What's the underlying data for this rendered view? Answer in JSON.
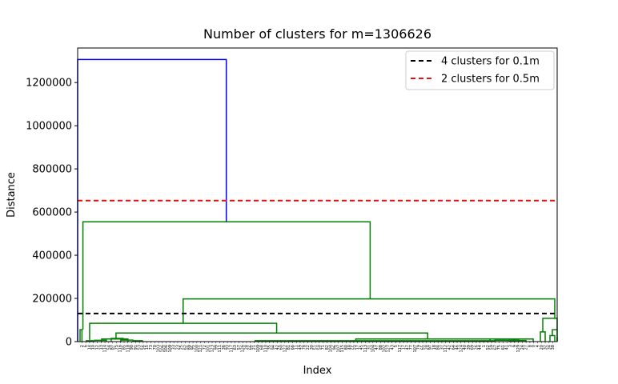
{
  "chart_data": {
    "type": "dendrogram",
    "title": "Number of clusters for m=1306626",
    "xlabel": "Index",
    "ylabel": "Distance",
    "ylim": [
      0,
      1360000
    ],
    "y_ticks": [
      0,
      200000,
      400000,
      600000,
      800000,
      1000000,
      1200000
    ],
    "y_tick_labels": [
      "0",
      "200000",
      "400000",
      "600000",
      "800000",
      "1000000",
      "1200000"
    ],
    "leaf_labels": [
      "2",
      "6",
      "14",
      "10",
      "12",
      "13",
      "114",
      "54",
      "87",
      "75",
      "116",
      "85",
      "118",
      "90",
      "91",
      "53",
      "56",
      "15",
      "73",
      "70",
      "103",
      "106",
      "106",
      "109",
      "33",
      "23",
      "25",
      "62",
      "89",
      "95",
      "100",
      "121",
      "72",
      "101",
      "123",
      "99",
      "111",
      "36",
      "93",
      "117",
      "63",
      "57",
      "126",
      "28",
      "66",
      "21",
      "109",
      "68",
      "110",
      "35",
      "94",
      "42",
      "60",
      "122",
      "81",
      "66",
      "11",
      "49",
      "78",
      "22",
      "30",
      "51",
      "50",
      "71",
      "82",
      "104",
      "96",
      "107",
      "115",
      "80",
      "48",
      "55",
      "17",
      "45",
      "113",
      "31",
      "104",
      "47",
      "88",
      "102",
      "127",
      "43",
      "5",
      "117",
      "17",
      "47",
      "77",
      "107",
      "79",
      "65",
      "28",
      "97",
      "18",
      "84",
      "37",
      "112",
      "42",
      "64",
      "46",
      "124",
      "40",
      "39",
      "69",
      "26",
      "44",
      "1",
      "52",
      "59",
      "67",
      "75",
      "61",
      "41",
      "3",
      "9",
      "129",
      "24",
      "27",
      "8",
      "0",
      "4",
      "20",
      "32",
      "34",
      "38"
    ],
    "reference_lines": [
      {
        "name": "4 clusters for 0.1m",
        "y": 130000,
        "color": "#000000"
      },
      {
        "name": "2 clusters for 0.5m",
        "y": 653000,
        "color": "#e6110d"
      }
    ],
    "links": [
      {
        "color": "#0000ff",
        "x": [
          0.0,
          0.0,
          0.31,
          0.31
        ],
        "y": [
          0,
          1306626,
          1306626,
          555000
        ]
      },
      {
        "color": "#008000",
        "x": [
          0.011,
          0.011,
          0.61,
          0.61
        ],
        "y": [
          55000,
          555000,
          555000,
          198000
        ]
      },
      {
        "color": "#008000",
        "x": [
          0.22,
          0.22,
          0.995,
          0.995
        ],
        "y": [
          85000,
          198000,
          198000,
          108000
        ]
      },
      {
        "color": "#008000",
        "x": [
          0.025,
          0.025,
          0.415,
          0.415
        ],
        "y": [
          8000,
          85000,
          85000,
          40000
        ]
      },
      {
        "color": "#008000",
        "x": [
          0.08,
          0.08,
          0.73,
          0.73
        ],
        "y": [
          15000,
          40000,
          40000,
          12000
        ]
      },
      {
        "color": "#008000",
        "x": [
          0.07,
          0.07,
          0.095,
          0.095
        ],
        "y": [
          0,
          15000,
          15000,
          5000
        ]
      },
      {
        "color": "#008000",
        "x": [
          0.05,
          0.05,
          0.105,
          0.105
        ],
        "y": [
          0,
          12000,
          12000,
          0
        ]
      },
      {
        "color": "#008000",
        "x": [
          0.035,
          0.035,
          0.06,
          0.06
        ],
        "y": [
          0,
          6000,
          6000,
          0
        ]
      },
      {
        "color": "#008000",
        "x": [
          0.09,
          0.09,
          0.115,
          0.115
        ],
        "y": [
          0,
          7000,
          7000,
          0
        ]
      },
      {
        "color": "#008000",
        "x": [
          0.115,
          0.115,
          0.135,
          0.135
        ],
        "y": [
          0,
          4000,
          4000,
          0
        ]
      },
      {
        "color": "#008000",
        "x": [
          0.018,
          0.018,
          0.032,
          0.032
        ],
        "y": [
          0,
          4000,
          4000,
          0
        ]
      },
      {
        "color": "#008000",
        "x": [
          0.005,
          0.005,
          0.009,
          0.009
        ],
        "y": [
          0,
          55000,
          55000,
          0
        ]
      },
      {
        "color": "#008000",
        "x": [
          0.37,
          0.37,
          0.87,
          0.87
        ],
        "y": [
          0,
          4000,
          4000,
          0
        ]
      },
      {
        "color": "#008000",
        "x": [
          0.58,
          0.58,
          0.91,
          0.91
        ],
        "y": [
          0,
          12000,
          12000,
          0
        ]
      },
      {
        "color": "#008000",
        "x": [
          0.86,
          0.86,
          0.95,
          0.95
        ],
        "y": [
          0,
          12000,
          12000,
          0
        ]
      },
      {
        "color": "#008000",
        "x": [
          0.87,
          0.87,
          0.92,
          0.92
        ],
        "y": [
          0,
          6000,
          6000,
          0
        ]
      },
      {
        "color": "#008000",
        "x": [
          0.9,
          0.9,
          0.935,
          0.935
        ],
        "y": [
          0,
          5000,
          5000,
          0
        ]
      },
      {
        "color": "#008000",
        "x": [
          0.97,
          0.97,
          1.0,
          1.0
        ],
        "y": [
          45000,
          108000,
          108000,
          55000
        ]
      },
      {
        "color": "#008000",
        "x": [
          0.965,
          0.965,
          0.975,
          0.975
        ],
        "y": [
          0,
          45000,
          45000,
          0
        ]
      },
      {
        "color": "#008000",
        "x": [
          0.99,
          0.99,
          1.01,
          1.01
        ],
        "y": [
          28000,
          55000,
          55000,
          32000
        ]
      },
      {
        "color": "#008000",
        "x": [
          0.985,
          0.985,
          0.995,
          0.995
        ],
        "y": [
          0,
          28000,
          28000,
          0
        ]
      },
      {
        "color": "#008000",
        "x": [
          1.005,
          1.005,
          1.015,
          1.015
        ],
        "y": [
          20000,
          32000,
          32000,
          22000
        ]
      },
      {
        "color": "#008000",
        "x": [
          1.0,
          1.0,
          1.01,
          1.01
        ],
        "y": [
          0,
          20000,
          20000,
          0
        ]
      },
      {
        "color": "#008000",
        "x": [
          1.01,
          1.01,
          1.02,
          1.02
        ],
        "y": [
          0,
          22000,
          22000,
          0
        ]
      }
    ],
    "legend": {
      "position": "top-right"
    },
    "grid": false
  }
}
